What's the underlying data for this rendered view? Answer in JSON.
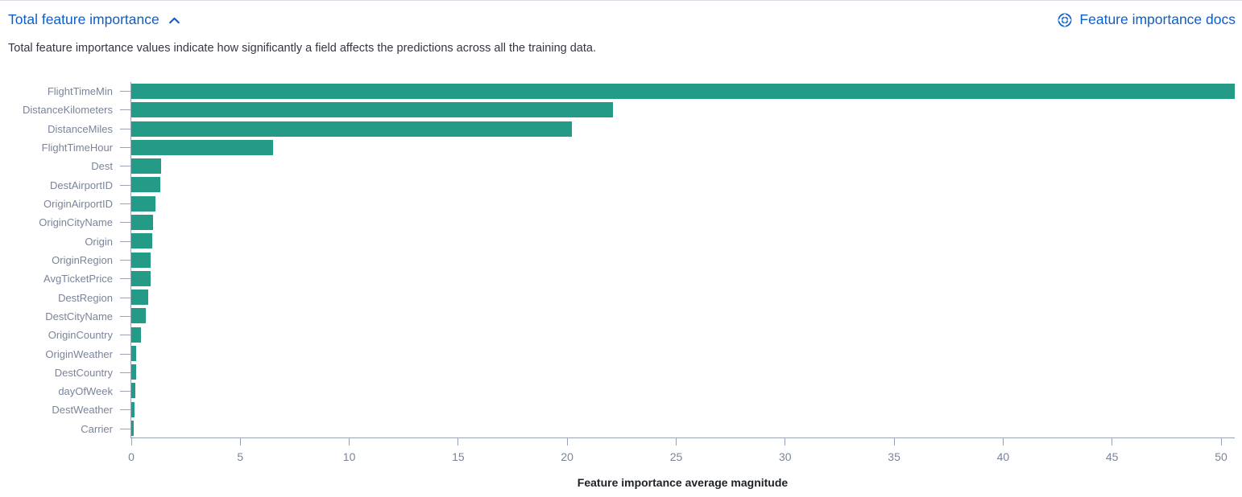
{
  "header": {
    "title": "Total feature importance",
    "collapse_icon": "chevron-up-icon",
    "docs_icon": "lifebuoy-icon",
    "docs_link_label": "Feature importance docs"
  },
  "description": "Total feature importance values indicate how significantly a field affects the predictions across all the training data.",
  "colors": {
    "link_blue": "#0b5fc9",
    "bar_teal": "#249b87",
    "axis_gray": "#9aa3b5",
    "label_gray": "#7b8499"
  },
  "chart_data": {
    "type": "bar",
    "orientation": "horizontal",
    "title": "",
    "xlabel": "Feature importance average magnitude",
    "ylabel": "",
    "categories": [
      "FlightTimeMin",
      "DistanceKilometers",
      "DistanceMiles",
      "FlightTimeHour",
      "Dest",
      "DestAirportID",
      "OriginAirportID",
      "OriginCityName",
      "Origin",
      "OriginRegion",
      "AvgTicketPrice",
      "DestRegion",
      "DestCityName",
      "OriginCountry",
      "OriginWeather",
      "DestCountry",
      "dayOfWeek",
      "DestWeather",
      "Carrier"
    ],
    "values": [
      50.7,
      22.1,
      20.2,
      6.5,
      1.37,
      1.33,
      1.1,
      1.0,
      0.97,
      0.9,
      0.87,
      0.78,
      0.65,
      0.45,
      0.23,
      0.21,
      0.2,
      0.16,
      0.12
    ],
    "x_ticks": [
      0,
      5,
      10,
      15,
      20,
      25,
      30,
      35,
      40,
      45,
      50
    ],
    "xlim": [
      0,
      50.7
    ],
    "grid": false,
    "legend": "none",
    "bar_color": "#249b87"
  }
}
